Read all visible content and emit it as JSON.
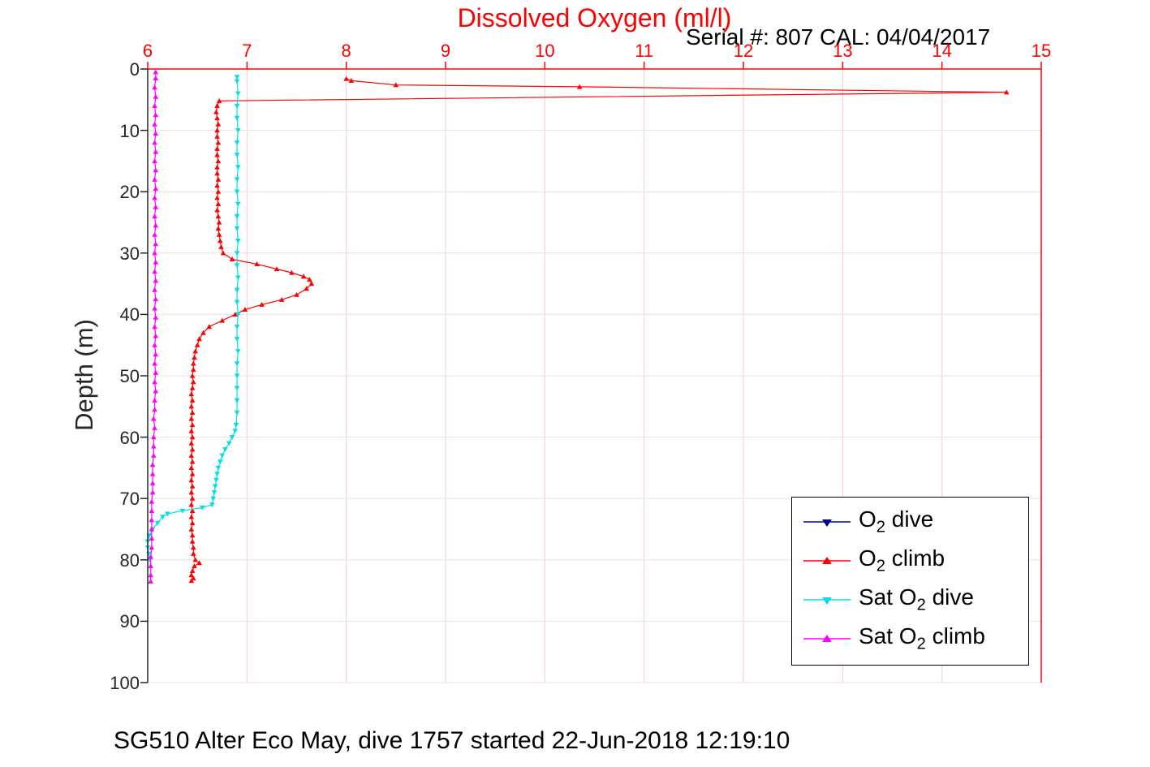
{
  "chart_data": {
    "type": "line",
    "title": "Dissolved Oxygen (ml/l)",
    "annotation": "Serial #: 807  CAL: 04/04/2017",
    "caption": "SG510 Alter Eco May, dive 1757 started 22-Jun-2018 12:19:10",
    "xlabel": "Dissolved Oxygen (ml/l)",
    "ylabel": "Depth (m)",
    "x_axis_location": "top",
    "y_axis_reversed": true,
    "xlim": [
      6,
      15
    ],
    "ylim": [
      0,
      100
    ],
    "x_ticks": [
      6,
      7,
      8,
      9,
      10,
      11,
      12,
      13,
      14,
      15
    ],
    "y_ticks": [
      0,
      10,
      20,
      30,
      40,
      50,
      60,
      70,
      80,
      90,
      100
    ],
    "grid": true,
    "grid_color_vertical": "#f5ccd2",
    "grid_color_horizontal": "#f0dde0",
    "axis_color_x": "#ff0000",
    "axis_color_y": "#262626",
    "legend_position": "bottom-right",
    "series": [
      {
        "name": "O2 dive",
        "color": "#00008b",
        "marker": "triangle-down",
        "points": []
      },
      {
        "name": "O2 climb",
        "color": "#ff0000",
        "marker": "triangle-up",
        "points": [
          [
            8.0,
            1.6
          ],
          [
            8.05,
            1.9
          ],
          [
            8.5,
            2.6
          ],
          [
            10.35,
            2.9
          ],
          [
            14.65,
            3.8
          ],
          [
            6.72,
            5.2
          ],
          [
            6.7,
            6
          ],
          [
            6.69,
            7
          ],
          [
            6.7,
            8
          ],
          [
            6.71,
            9
          ],
          [
            6.7,
            10
          ],
          [
            6.7,
            11
          ],
          [
            6.71,
            12
          ],
          [
            6.7,
            13
          ],
          [
            6.7,
            14
          ],
          [
            6.71,
            15
          ],
          [
            6.7,
            16
          ],
          [
            6.7,
            17
          ],
          [
            6.71,
            18
          ],
          [
            6.7,
            19
          ],
          [
            6.71,
            20
          ],
          [
            6.7,
            21
          ],
          [
            6.71,
            22
          ],
          [
            6.7,
            23
          ],
          [
            6.71,
            24
          ],
          [
            6.72,
            25
          ],
          [
            6.71,
            26
          ],
          [
            6.72,
            27
          ],
          [
            6.73,
            28
          ],
          [
            6.74,
            29
          ],
          [
            6.76,
            30
          ],
          [
            6.85,
            31
          ],
          [
            7.1,
            31.8
          ],
          [
            7.3,
            32.6
          ],
          [
            7.45,
            33.2
          ],
          [
            7.57,
            33.8
          ],
          [
            7.63,
            34.3
          ],
          [
            7.65,
            35
          ],
          [
            7.6,
            35.8
          ],
          [
            7.5,
            36.8
          ],
          [
            7.35,
            37.6
          ],
          [
            7.15,
            38.4
          ],
          [
            6.98,
            39.2
          ],
          [
            6.88,
            40
          ],
          [
            6.75,
            41
          ],
          [
            6.62,
            42
          ],
          [
            6.56,
            43
          ],
          [
            6.52,
            44
          ],
          [
            6.5,
            45
          ],
          [
            6.48,
            46
          ],
          [
            6.47,
            47
          ],
          [
            6.46,
            48
          ],
          [
            6.46,
            49
          ],
          [
            6.45,
            50
          ],
          [
            6.46,
            51
          ],
          [
            6.45,
            52
          ],
          [
            6.44,
            53
          ],
          [
            6.45,
            54
          ],
          [
            6.44,
            55
          ],
          [
            6.45,
            56
          ],
          [
            6.44,
            57
          ],
          [
            6.45,
            58
          ],
          [
            6.44,
            59
          ],
          [
            6.45,
            60
          ],
          [
            6.44,
            61
          ],
          [
            6.45,
            62
          ],
          [
            6.44,
            63
          ],
          [
            6.45,
            64
          ],
          [
            6.44,
            65
          ],
          [
            6.45,
            66
          ],
          [
            6.44,
            67
          ],
          [
            6.45,
            68
          ],
          [
            6.44,
            69
          ],
          [
            6.45,
            70
          ],
          [
            6.44,
            71
          ],
          [
            6.45,
            72
          ],
          [
            6.44,
            73
          ],
          [
            6.45,
            74
          ],
          [
            6.44,
            75
          ],
          [
            6.45,
            76
          ],
          [
            6.45,
            77
          ],
          [
            6.46,
            78
          ],
          [
            6.46,
            79
          ],
          [
            6.48,
            80
          ],
          [
            6.52,
            80.5
          ],
          [
            6.47,
            81
          ],
          [
            6.45,
            81.8
          ],
          [
            6.44,
            82.5
          ],
          [
            6.46,
            83
          ],
          [
            6.44,
            83.4
          ]
        ]
      },
      {
        "name": "Sat O2 dive",
        "color": "#00e0ea",
        "marker": "triangle-down",
        "points": [
          [
            6.9,
            1.3
          ],
          [
            6.9,
            2
          ],
          [
            6.91,
            4
          ],
          [
            6.9,
            6
          ],
          [
            6.9,
            8
          ],
          [
            6.91,
            10
          ],
          [
            6.9,
            12
          ],
          [
            6.9,
            14
          ],
          [
            6.91,
            16
          ],
          [
            6.9,
            18
          ],
          [
            6.9,
            20
          ],
          [
            6.91,
            22
          ],
          [
            6.9,
            24
          ],
          [
            6.9,
            26
          ],
          [
            6.91,
            28
          ],
          [
            6.9,
            30
          ],
          [
            6.9,
            32
          ],
          [
            6.91,
            34
          ],
          [
            6.9,
            36
          ],
          [
            6.9,
            38
          ],
          [
            6.91,
            40
          ],
          [
            6.9,
            42
          ],
          [
            6.9,
            44
          ],
          [
            6.91,
            46
          ],
          [
            6.9,
            48
          ],
          [
            6.9,
            50
          ],
          [
            6.9,
            52
          ],
          [
            6.9,
            54
          ],
          [
            6.9,
            56
          ],
          [
            6.89,
            58
          ],
          [
            6.88,
            59
          ],
          [
            6.85,
            60
          ],
          [
            6.82,
            61
          ],
          [
            6.78,
            62
          ],
          [
            6.75,
            63
          ],
          [
            6.73,
            64
          ],
          [
            6.71,
            65
          ],
          [
            6.7,
            66
          ],
          [
            6.69,
            67
          ],
          [
            6.68,
            68
          ],
          [
            6.67,
            69
          ],
          [
            6.66,
            70
          ],
          [
            6.65,
            71
          ],
          [
            6.55,
            71.5
          ],
          [
            6.35,
            72
          ],
          [
            6.2,
            72.5
          ],
          [
            6.15,
            73
          ],
          [
            6.1,
            74
          ],
          [
            6.05,
            75
          ],
          [
            6.02,
            76
          ],
          [
            6.0,
            77
          ],
          [
            6.0,
            78
          ],
          [
            6.01,
            79
          ],
          [
            6.02,
            80
          ]
        ]
      },
      {
        "name": "Sat O2 climb",
        "color": "#ff00ff",
        "marker": "triangle-up",
        "points": [
          [
            6.08,
            0.5
          ],
          [
            6.08,
            1.5
          ],
          [
            6.07,
            3
          ],
          [
            6.08,
            4.5
          ],
          [
            6.07,
            6
          ],
          [
            6.08,
            7.5
          ],
          [
            6.07,
            9
          ],
          [
            6.08,
            10.5
          ],
          [
            6.07,
            12
          ],
          [
            6.08,
            13.5
          ],
          [
            6.07,
            15
          ],
          [
            6.08,
            16.5
          ],
          [
            6.07,
            18
          ],
          [
            6.08,
            19.5
          ],
          [
            6.07,
            21
          ],
          [
            6.08,
            22.5
          ],
          [
            6.07,
            24
          ],
          [
            6.08,
            25.5
          ],
          [
            6.07,
            27
          ],
          [
            6.08,
            28.5
          ],
          [
            6.07,
            30
          ],
          [
            6.08,
            31.5
          ],
          [
            6.07,
            33
          ],
          [
            6.08,
            34.5
          ],
          [
            6.07,
            36
          ],
          [
            6.08,
            37.5
          ],
          [
            6.07,
            39
          ],
          [
            6.08,
            40.5
          ],
          [
            6.07,
            42
          ],
          [
            6.08,
            43.5
          ],
          [
            6.07,
            45
          ],
          [
            6.08,
            46.5
          ],
          [
            6.07,
            48
          ],
          [
            6.08,
            49.5
          ],
          [
            6.07,
            51
          ],
          [
            6.08,
            52.5
          ],
          [
            6.07,
            54
          ],
          [
            6.07,
            55.5
          ],
          [
            6.06,
            57
          ],
          [
            6.07,
            58.5
          ],
          [
            6.06,
            60
          ],
          [
            6.06,
            61.5
          ],
          [
            6.06,
            63
          ],
          [
            6.05,
            64.5
          ],
          [
            6.05,
            66
          ],
          [
            6.05,
            67.5
          ],
          [
            6.05,
            69
          ],
          [
            6.04,
            70.5
          ],
          [
            6.04,
            72
          ],
          [
            6.04,
            73.5
          ],
          [
            6.04,
            75
          ],
          [
            6.04,
            76.5
          ],
          [
            6.04,
            78
          ],
          [
            6.03,
            79.5
          ],
          [
            6.03,
            81
          ],
          [
            6.03,
            82.5
          ],
          [
            6.03,
            83.5
          ]
        ]
      }
    ]
  },
  "legend": {
    "items": [
      {
        "pre": "O",
        "sub": "2",
        "post": " dive",
        "color": "#00008b",
        "marker": "v"
      },
      {
        "pre": "O",
        "sub": "2",
        "post": " climb",
        "color": "#ff0000",
        "marker": "^"
      },
      {
        "pre": "Sat O",
        "sub": "2",
        "post": " dive",
        "color": "#00e0ea",
        "marker": "v"
      },
      {
        "pre": "Sat O",
        "sub": "2",
        "post": " climb",
        "color": "#ff00ff",
        "marker": "^"
      }
    ]
  }
}
